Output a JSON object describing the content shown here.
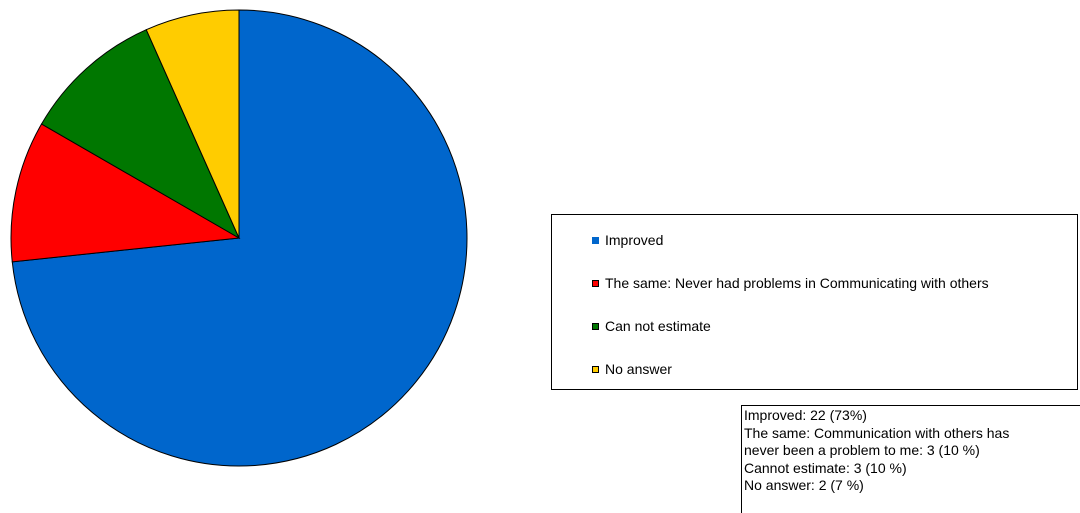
{
  "chart_data": {
    "type": "pie",
    "slices": [
      {
        "label": "Improved",
        "value": 22,
        "color": "#0066cc"
      },
      {
        "label": "The same: Never had problems in Communicating with others",
        "value": 3,
        "color": "#ff0000"
      },
      {
        "label": "Can not estimate",
        "value": 3,
        "color": "#007700"
      },
      {
        "label": "No answer",
        "value": 2,
        "color": "#ffcc00"
      }
    ],
    "legend_position": "right",
    "start_angle": "12 o'clock",
    "direction": "clockwise"
  },
  "legend": {
    "items": [
      {
        "label": "Improved",
        "color": "#0066cc"
      },
      {
        "label": "The same: Never had problems in Communicating with others",
        "color": "#ff0000"
      },
      {
        "label": "Can not estimate",
        "color": "#007700"
      },
      {
        "label": "No answer",
        "color": "#ffcc00"
      }
    ]
  },
  "notes": {
    "lines": [
      "Improved: 22 (73%)",
      "The same: Communication with others has",
      "never been a problem to me: 3 (10 %)",
      "Cannot estimate: 3 (10 %)",
      "No answer: 2  (7 %)"
    ]
  }
}
